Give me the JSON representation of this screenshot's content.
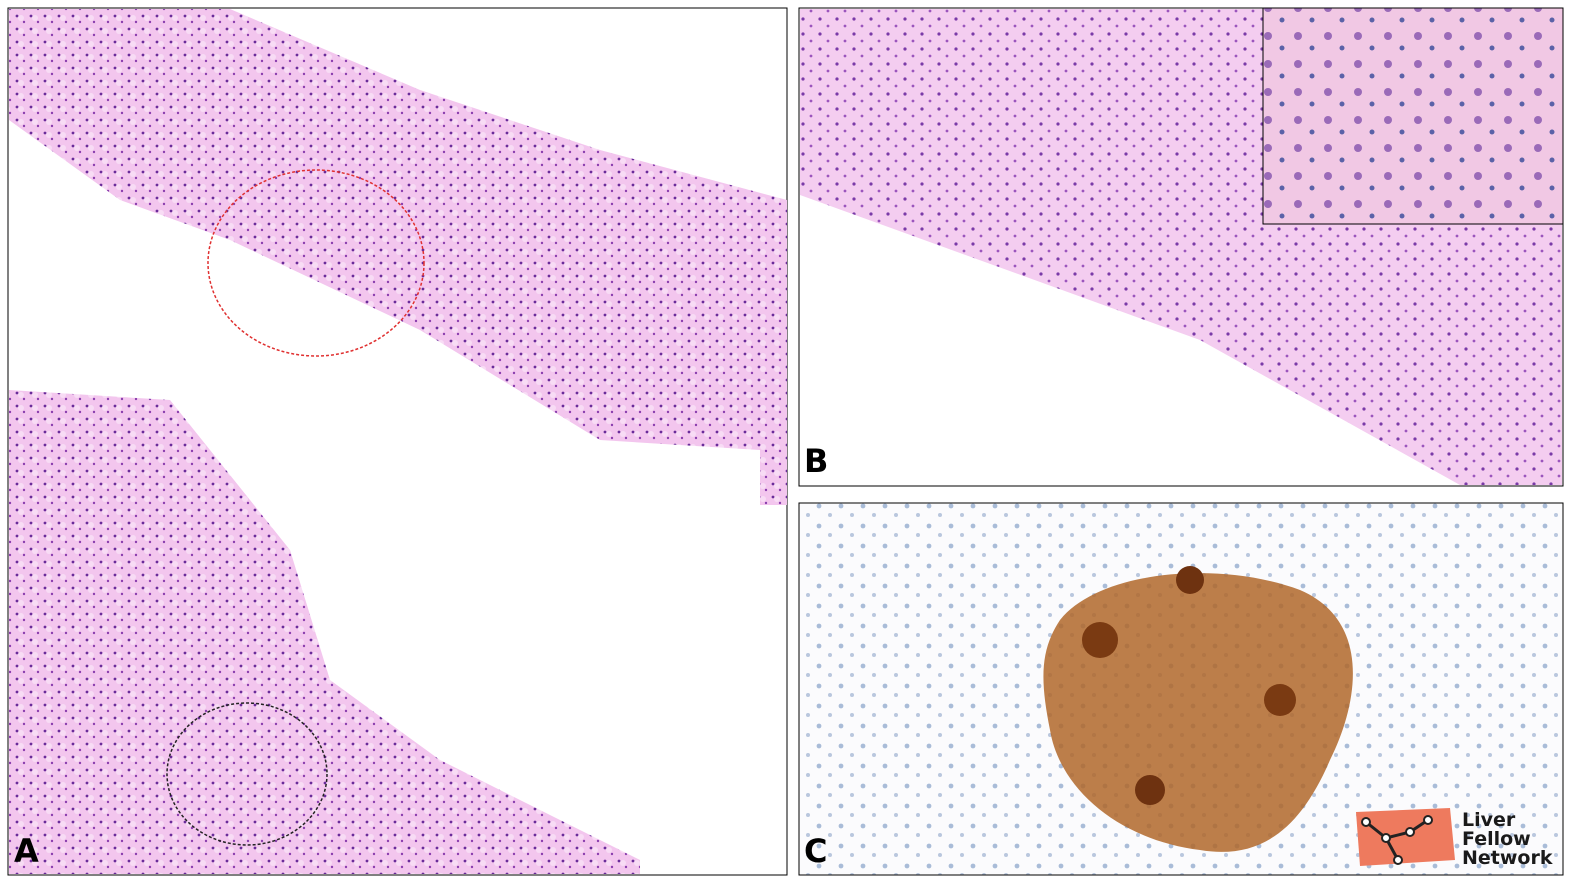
{
  "panels": [
    {
      "label": "A"
    },
    {
      "label": "B"
    },
    {
      "label": "C"
    }
  ],
  "logo": {
    "lines": [
      "Liver",
      "Fellow",
      "Network"
    ]
  }
}
